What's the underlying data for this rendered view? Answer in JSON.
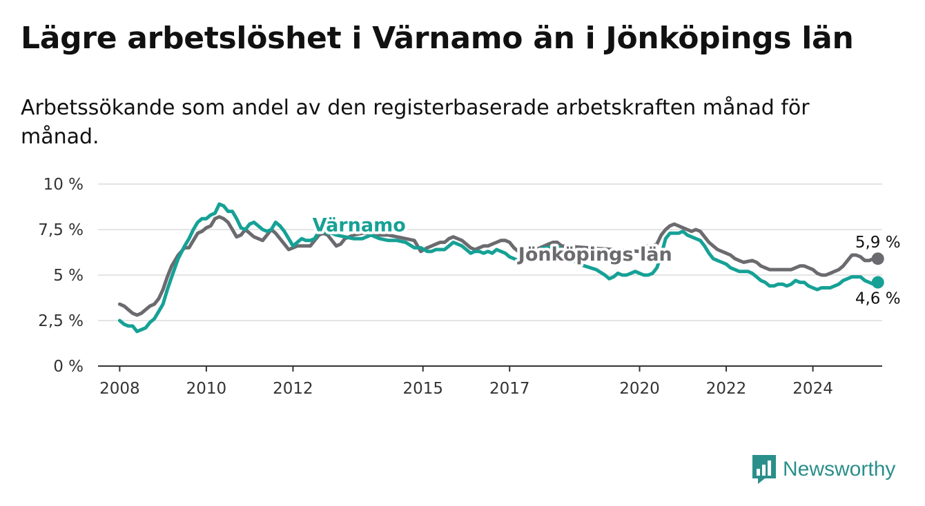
{
  "title": "Lägre arbetslöshet i Värnamo än i Jönköpings län",
  "subtitle": "Arbetssökande som andel av den registerbaserade arbetskraften månad för månad.",
  "logo": {
    "text": "Newsworthy",
    "icon": "newsworthy-logo-icon",
    "color": "#2a8f8b"
  },
  "chart_data": {
    "type": "line",
    "title": "Lägre arbetslöshet i Värnamo än i Jönköpings län",
    "subtitle": "Arbetssökande som andel av den registerbaserade arbetskraften månad för månad.",
    "xlabel": "",
    "ylabel": "",
    "xlim": [
      2007.5,
      2025.6
    ],
    "ylim": [
      0,
      10
    ],
    "x_ticks": [
      2008,
      2010,
      2012,
      2015,
      2017,
      2020,
      2022,
      2024
    ],
    "x_tick_labels": [
      "2008",
      "2010",
      "2012",
      "2015",
      "2017",
      "2020",
      "2022",
      "2024"
    ],
    "y_ticks": [
      0,
      2.5,
      5,
      7.5,
      10
    ],
    "y_tick_labels": [
      "0 %",
      "2,5 %",
      "5 %",
      "7,5 %",
      "10 %"
    ],
    "grid": true,
    "series": [
      {
        "name": "Jönköpings län",
        "color": "#6b6b6f",
        "label_x": 2017.2,
        "label_y": 5.8,
        "end_value_label": "5,9 %",
        "points": [
          [
            2008.0,
            3.4
          ],
          [
            2008.1,
            3.3
          ],
          [
            2008.2,
            3.1
          ],
          [
            2008.3,
            2.9
          ],
          [
            2008.4,
            2.8
          ],
          [
            2008.5,
            2.9
          ],
          [
            2008.6,
            3.1
          ],
          [
            2008.7,
            3.3
          ],
          [
            2008.8,
            3.4
          ],
          [
            2008.9,
            3.7
          ],
          [
            2009.0,
            4.2
          ],
          [
            2009.1,
            4.9
          ],
          [
            2009.2,
            5.5
          ],
          [
            2009.35,
            6.1
          ],
          [
            2009.5,
            6.5
          ],
          [
            2009.6,
            6.5
          ],
          [
            2009.7,
            6.9
          ],
          [
            2009.8,
            7.3
          ],
          [
            2009.9,
            7.4
          ],
          [
            2010.0,
            7.6
          ],
          [
            2010.1,
            7.7
          ],
          [
            2010.2,
            8.1
          ],
          [
            2010.3,
            8.2
          ],
          [
            2010.4,
            8.1
          ],
          [
            2010.5,
            7.9
          ],
          [
            2010.6,
            7.5
          ],
          [
            2010.7,
            7.1
          ],
          [
            2010.8,
            7.2
          ],
          [
            2010.9,
            7.5
          ],
          [
            2011.0,
            7.3
          ],
          [
            2011.1,
            7.1
          ],
          [
            2011.2,
            7.0
          ],
          [
            2011.3,
            6.9
          ],
          [
            2011.4,
            7.2
          ],
          [
            2011.5,
            7.5
          ],
          [
            2011.6,
            7.3
          ],
          [
            2011.7,
            7.0
          ],
          [
            2011.8,
            6.7
          ],
          [
            2011.9,
            6.4
          ],
          [
            2012.0,
            6.5
          ],
          [
            2012.1,
            6.6
          ],
          [
            2012.3,
            6.6
          ],
          [
            2012.4,
            6.6
          ],
          [
            2012.5,
            6.9
          ],
          [
            2012.6,
            7.2
          ],
          [
            2012.7,
            7.3
          ],
          [
            2012.8,
            7.2
          ],
          [
            2012.9,
            6.9
          ],
          [
            2013.0,
            6.6
          ],
          [
            2013.1,
            6.7
          ],
          [
            2013.2,
            7.0
          ],
          [
            2013.4,
            7.2
          ],
          [
            2013.6,
            7.3
          ],
          [
            2013.8,
            7.3
          ],
          [
            2014.0,
            7.2
          ],
          [
            2014.2,
            7.2
          ],
          [
            2014.4,
            7.1
          ],
          [
            2014.6,
            7.0
          ],
          [
            2014.8,
            6.9
          ],
          [
            2014.95,
            6.3
          ],
          [
            2015.1,
            6.5
          ],
          [
            2015.2,
            6.6
          ],
          [
            2015.3,
            6.7
          ],
          [
            2015.4,
            6.8
          ],
          [
            2015.5,
            6.8
          ],
          [
            2015.6,
            7.0
          ],
          [
            2015.7,
            7.1
          ],
          [
            2015.8,
            7.0
          ],
          [
            2015.9,
            6.9
          ],
          [
            2016.0,
            6.7
          ],
          [
            2016.1,
            6.5
          ],
          [
            2016.2,
            6.4
          ],
          [
            2016.3,
            6.5
          ],
          [
            2016.4,
            6.6
          ],
          [
            2016.5,
            6.6
          ],
          [
            2016.6,
            6.7
          ],
          [
            2016.7,
            6.8
          ],
          [
            2016.8,
            6.9
          ],
          [
            2016.9,
            6.9
          ],
          [
            2017.0,
            6.8
          ],
          [
            2017.1,
            6.5
          ],
          [
            2017.2,
            6.3
          ],
          [
            2017.3,
            6.1
          ],
          [
            2017.4,
            6.0
          ],
          [
            2017.5,
            6.2
          ],
          [
            2017.6,
            6.4
          ],
          [
            2017.7,
            6.5
          ],
          [
            2017.8,
            6.6
          ],
          [
            2017.9,
            6.7
          ],
          [
            2018.0,
            6.8
          ],
          [
            2018.1,
            6.8
          ],
          [
            2018.2,
            6.6
          ],
          [
            2020.0,
            6.3
          ],
          [
            2020.1,
            6.5
          ],
          [
            2020.2,
            6.6
          ],
          [
            2020.3,
            6.6
          ],
          [
            2020.4,
            6.7
          ],
          [
            2020.5,
            7.2
          ],
          [
            2020.6,
            7.5
          ],
          [
            2020.7,
            7.7
          ],
          [
            2020.8,
            7.8
          ],
          [
            2020.9,
            7.7
          ],
          [
            2021.0,
            7.6
          ],
          [
            2021.1,
            7.5
          ],
          [
            2021.2,
            7.4
          ],
          [
            2021.3,
            7.5
          ],
          [
            2021.4,
            7.4
          ],
          [
            2021.5,
            7.1
          ],
          [
            2021.6,
            6.8
          ],
          [
            2021.7,
            6.6
          ],
          [
            2021.8,
            6.4
          ],
          [
            2021.9,
            6.3
          ],
          [
            2022.0,
            6.2
          ],
          [
            2022.1,
            6.1
          ],
          [
            2022.2,
            5.9
          ],
          [
            2022.3,
            5.8
          ],
          [
            2022.4,
            5.7
          ],
          [
            2022.6,
            5.8
          ],
          [
            2022.7,
            5.7
          ],
          [
            2022.8,
            5.5
          ],
          [
            2022.9,
            5.4
          ],
          [
            2023.0,
            5.3
          ],
          [
            2023.2,
            5.3
          ],
          [
            2023.4,
            5.3
          ],
          [
            2023.5,
            5.3
          ],
          [
            2023.6,
            5.4
          ],
          [
            2023.7,
            5.5
          ],
          [
            2023.8,
            5.5
          ],
          [
            2023.9,
            5.4
          ],
          [
            2024.0,
            5.3
          ],
          [
            2024.1,
            5.1
          ],
          [
            2024.2,
            5.0
          ],
          [
            2024.3,
            5.0
          ],
          [
            2024.4,
            5.1
          ],
          [
            2024.5,
            5.2
          ],
          [
            2024.6,
            5.3
          ],
          [
            2024.7,
            5.5
          ],
          [
            2024.8,
            5.8
          ],
          [
            2024.9,
            6.1
          ],
          [
            2025.0,
            6.1
          ],
          [
            2025.1,
            6.0
          ],
          [
            2025.2,
            5.8
          ],
          [
            2025.3,
            5.8
          ],
          [
            2025.4,
            5.9
          ],
          [
            2025.5,
            5.9
          ]
        ]
      },
      {
        "name": "Värnamo",
        "color": "#16a196",
        "label_x": 2012.45,
        "label_y": 7.4,
        "end_value_label": "4,6 %",
        "points": [
          [
            2008.0,
            2.5
          ],
          [
            2008.1,
            2.3
          ],
          [
            2008.2,
            2.2
          ],
          [
            2008.3,
            2.2
          ],
          [
            2008.4,
            1.9
          ],
          [
            2008.5,
            2.0
          ],
          [
            2008.6,
            2.1
          ],
          [
            2008.7,
            2.4
          ],
          [
            2008.8,
            2.6
          ],
          [
            2008.9,
            3.0
          ],
          [
            2009.0,
            3.4
          ],
          [
            2009.1,
            4.2
          ],
          [
            2009.2,
            4.9
          ],
          [
            2009.35,
            5.9
          ],
          [
            2009.5,
            6.6
          ],
          [
            2009.6,
            7.0
          ],
          [
            2009.7,
            7.5
          ],
          [
            2009.8,
            7.9
          ],
          [
            2009.9,
            8.1
          ],
          [
            2010.0,
            8.1
          ],
          [
            2010.1,
            8.3
          ],
          [
            2010.2,
            8.4
          ],
          [
            2010.3,
            8.9
          ],
          [
            2010.4,
            8.8
          ],
          [
            2010.5,
            8.5
          ],
          [
            2010.6,
            8.5
          ],
          [
            2010.7,
            8.1
          ],
          [
            2010.8,
            7.6
          ],
          [
            2010.9,
            7.5
          ],
          [
            2011.0,
            7.8
          ],
          [
            2011.1,
            7.9
          ],
          [
            2011.2,
            7.7
          ],
          [
            2011.3,
            7.5
          ],
          [
            2011.4,
            7.4
          ],
          [
            2011.5,
            7.5
          ],
          [
            2011.6,
            7.9
          ],
          [
            2011.7,
            7.7
          ],
          [
            2011.8,
            7.4
          ],
          [
            2011.9,
            7.0
          ],
          [
            2012.0,
            6.6
          ],
          [
            2012.1,
            6.8
          ],
          [
            2012.2,
            7.0
          ],
          [
            2012.3,
            6.9
          ],
          [
            2012.4,
            6.9
          ],
          [
            2012.5,
            7.0
          ],
          [
            2012.6,
            7.4
          ],
          [
            2012.7,
            7.4
          ],
          [
            2012.8,
            7.3
          ],
          [
            2012.9,
            7.3
          ],
          [
            2013.0,
            7.2
          ],
          [
            2013.2,
            7.1
          ],
          [
            2013.4,
            7.0
          ],
          [
            2013.6,
            7.0
          ],
          [
            2013.8,
            7.2
          ],
          [
            2014.0,
            7.0
          ],
          [
            2014.2,
            6.9
          ],
          [
            2014.4,
            6.9
          ],
          [
            2014.6,
            6.8
          ],
          [
            2014.8,
            6.5
          ],
          [
            2014.95,
            6.5
          ],
          [
            2015.1,
            6.3
          ],
          [
            2015.2,
            6.3
          ],
          [
            2015.3,
            6.4
          ],
          [
            2015.4,
            6.4
          ],
          [
            2015.5,
            6.4
          ],
          [
            2015.6,
            6.6
          ],
          [
            2015.7,
            6.8
          ],
          [
            2015.8,
            6.7
          ],
          [
            2015.9,
            6.6
          ],
          [
            2016.0,
            6.4
          ],
          [
            2016.1,
            6.2
          ],
          [
            2016.2,
            6.3
          ],
          [
            2016.3,
            6.3
          ],
          [
            2016.4,
            6.2
          ],
          [
            2016.5,
            6.3
          ],
          [
            2016.6,
            6.2
          ],
          [
            2016.7,
            6.4
          ],
          [
            2016.8,
            6.3
          ],
          [
            2016.9,
            6.2
          ],
          [
            2017.0,
            6.0
          ],
          [
            2017.1,
            5.9
          ],
          [
            2017.2,
            5.8
          ],
          [
            2017.3,
            5.9
          ],
          [
            2017.4,
            6.1
          ],
          [
            2017.5,
            6.3
          ],
          [
            2017.6,
            6.3
          ],
          [
            2017.7,
            6.4
          ],
          [
            2017.8,
            6.5
          ],
          [
            2017.9,
            6.5
          ],
          [
            2018.0,
            6.6
          ],
          [
            2018.1,
            6.6
          ],
          [
            2018.2,
            6.4
          ],
          [
            2018.3,
            6.1
          ],
          [
            2018.6,
            5.6
          ],
          [
            2019.0,
            5.3
          ],
          [
            2019.2,
            5.0
          ],
          [
            2019.3,
            4.8
          ],
          [
            2019.4,
            4.9
          ],
          [
            2019.5,
            5.1
          ],
          [
            2019.6,
            5.0
          ],
          [
            2019.7,
            5.0
          ],
          [
            2019.8,
            5.1
          ],
          [
            2019.9,
            5.2
          ],
          [
            2020.0,
            5.1
          ],
          [
            2020.1,
            5.0
          ],
          [
            2020.2,
            5.0
          ],
          [
            2020.3,
            5.1
          ],
          [
            2020.4,
            5.4
          ],
          [
            2020.5,
            6.1
          ],
          [
            2020.6,
            7.0
          ],
          [
            2020.7,
            7.3
          ],
          [
            2020.8,
            7.3
          ],
          [
            2020.9,
            7.3
          ],
          [
            2021.0,
            7.4
          ],
          [
            2021.1,
            7.2
          ],
          [
            2021.2,
            7.1
          ],
          [
            2021.3,
            7.0
          ],
          [
            2021.4,
            6.9
          ],
          [
            2021.5,
            6.6
          ],
          [
            2021.6,
            6.2
          ],
          [
            2021.7,
            5.9
          ],
          [
            2021.8,
            5.8
          ],
          [
            2021.9,
            5.7
          ],
          [
            2022.0,
            5.6
          ],
          [
            2022.1,
            5.4
          ],
          [
            2022.2,
            5.3
          ],
          [
            2022.3,
            5.2
          ],
          [
            2022.4,
            5.2
          ],
          [
            2022.5,
            5.2
          ],
          [
            2022.6,
            5.1
          ],
          [
            2022.7,
            4.9
          ],
          [
            2022.8,
            4.7
          ],
          [
            2022.9,
            4.6
          ],
          [
            2023.0,
            4.4
          ],
          [
            2023.1,
            4.4
          ],
          [
            2023.2,
            4.5
          ],
          [
            2023.3,
            4.5
          ],
          [
            2023.4,
            4.4
          ],
          [
            2023.5,
            4.5
          ],
          [
            2023.6,
            4.7
          ],
          [
            2023.7,
            4.6
          ],
          [
            2023.8,
            4.6
          ],
          [
            2023.9,
            4.4
          ],
          [
            2024.0,
            4.3
          ],
          [
            2024.1,
            4.2
          ],
          [
            2024.2,
            4.3
          ],
          [
            2024.3,
            4.3
          ],
          [
            2024.4,
            4.3
          ],
          [
            2024.5,
            4.4
          ],
          [
            2024.6,
            4.5
          ],
          [
            2024.7,
            4.7
          ],
          [
            2024.8,
            4.8
          ],
          [
            2024.9,
            4.9
          ],
          [
            2025.0,
            4.9
          ],
          [
            2025.1,
            4.9
          ],
          [
            2025.2,
            4.7
          ],
          [
            2025.3,
            4.6
          ],
          [
            2025.4,
            4.5
          ],
          [
            2025.5,
            4.6
          ]
        ]
      }
    ]
  }
}
